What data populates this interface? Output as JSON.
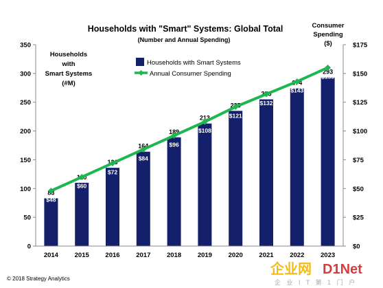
{
  "chart_data": {
    "type": "bar",
    "title": "Households with \"Smart\" Systems: Global Total",
    "subtitle": "(Number and Annual Spending)",
    "ylabel_left_lines": [
      "Households",
      "with",
      "Smart Systems",
      "(#M)"
    ],
    "ylabel_right_lines": [
      "Consumer",
      "Spending",
      "($)"
    ],
    "categories": [
      "2014",
      "2015",
      "2016",
      "2017",
      "2018",
      "2019",
      "2020",
      "2021",
      "2022",
      "2023"
    ],
    "series": [
      {
        "name": "Households with Smart Systems",
        "type": "bar",
        "axis": "left",
        "color": "#14206b",
        "values": [
          83,
          110,
          136,
          164,
          189,
          213,
          235,
          255,
          274,
          293
        ]
      },
      {
        "name": "Annual Consumer Spending",
        "type": "line",
        "axis": "right",
        "color": "#1fb550",
        "values": [
          48,
          60,
          72,
          84,
          96,
          108,
          121,
          132,
          143,
          155
        ],
        "data_labels": [
          "$48",
          "$60",
          "$72",
          "$84",
          "$96",
          "$108",
          "$121",
          "$132",
          "$143",
          "$155"
        ]
      }
    ],
    "y_left": {
      "min": 0,
      "max": 350,
      "ticks": [
        0,
        50,
        100,
        150,
        200,
        250,
        300,
        350
      ]
    },
    "y_right": {
      "min": 0,
      "max": 175,
      "ticks": [
        0,
        25,
        50,
        75,
        100,
        125,
        150,
        175
      ],
      "tick_labels": [
        "$0",
        "$25",
        "$50",
        "$75",
        "$100",
        "$125",
        "$150",
        "$175"
      ]
    },
    "grid": false,
    "legend_position": "top-center"
  },
  "footer": {
    "copyright": "© 2018 Strategy Analytics"
  },
  "watermark": {
    "brand_a": "企业网",
    "brand_b": "D1Net",
    "tagline": "企 业 I T 第 1 门 户"
  }
}
